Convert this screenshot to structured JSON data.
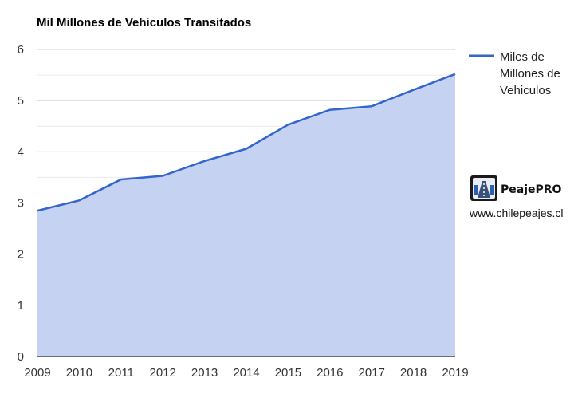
{
  "chart_data": {
    "type": "area",
    "title": "Mil Millones de Vehiculos Transitados",
    "xlabel": "",
    "ylabel": "",
    "categories": [
      "2009",
      "2010",
      "2011",
      "2012",
      "2013",
      "2014",
      "2015",
      "2016",
      "2017",
      "2018",
      "2019"
    ],
    "series": [
      {
        "name": "Miles de Millones de Vehiculos",
        "values": [
          2.85,
          3.05,
          3.46,
          3.53,
          3.82,
          4.06,
          4.53,
          4.82,
          4.89,
          5.21,
          5.52
        ]
      }
    ],
    "ylim": [
      0,
      6
    ],
    "yticks": [
      "0",
      "1",
      "2",
      "3",
      "4",
      "5",
      "6"
    ],
    "grid": true,
    "legend_position": "right",
    "colors": {
      "line": "#3366cc",
      "fill": "#c6d2f2",
      "grid": "#cccccc"
    },
    "legend_lines": [
      "Miles de",
      "Millones de",
      "Vehiculos"
    ]
  },
  "branding": {
    "name": "PeajePRO",
    "url": "www.chilepeajes.cl",
    "logo_icon": "highway-logo-icon"
  }
}
